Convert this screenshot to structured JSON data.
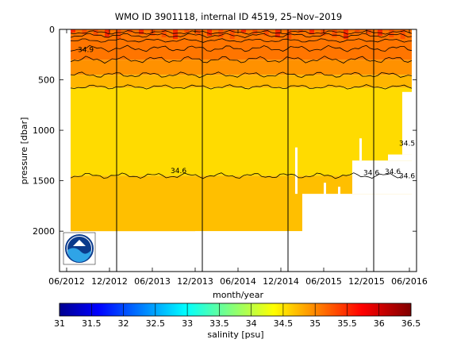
{
  "chart_data": [
    {
      "type": "heatmap",
      "title": "WMO ID 3901118, internal ID 4519, 25–Nov–2019",
      "xlabel": "month/year",
      "ylabel": "pressure [dbar]",
      "x_ticks": [
        "06/2012",
        "12/2012",
        "06/2013",
        "12/2013",
        "06/2014",
        "12/2014",
        "06/2015",
        "12/2015",
        "06/2016"
      ],
      "y_ticks": [
        0,
        500,
        1000,
        1500,
        2000
      ],
      "y_reversed": true,
      "x_range": [
        "2012-05",
        "2016-07"
      ],
      "y_range": [
        0,
        2400
      ],
      "year_boundaries": [
        "01/2013",
        "01/2014",
        "01/2015",
        "01/2016"
      ],
      "salinity_layers": [
        {
          "from_dbar": 0,
          "to_dbar": 300,
          "salinity": 35.1
        },
        {
          "from_dbar": 300,
          "to_dbar": 450,
          "salinity": 34.95
        },
        {
          "from_dbar": 450,
          "to_dbar": 580,
          "salinity": 34.75
        },
        {
          "from_dbar": 580,
          "to_dbar": 1450,
          "salinity": 34.55
        },
        {
          "from_dbar": 1450,
          "to_dbar": 2000,
          "salinity": 34.7
        }
      ],
      "contour_labels": [
        {
          "text": "34.9",
          "x": "2012-07",
          "y": 200
        },
        {
          "text": "34.6",
          "x": "2013-08",
          "y": 1400
        },
        {
          "text": "34.6",
          "x": "2015-11",
          "y": 1420
        },
        {
          "text": "34.6",
          "x": "2016-02",
          "y": 1410
        },
        {
          "text": "34.6",
          "x": "2016-04",
          "y": 1450
        },
        {
          "text": "34.5",
          "x": "2016-04",
          "y": 1130
        }
      ],
      "logo": "noaa-logo",
      "grid": false
    },
    {
      "type": "colorbar",
      "label": "salinity [psu]",
      "range": [
        31,
        36.5
      ],
      "ticks": [
        "31",
        "31.5",
        "32",
        "32.5",
        "33",
        "33.5",
        "34",
        "34.5",
        "35",
        "35.5",
        "36",
        "36.5"
      ],
      "colormap": "jet"
    }
  ]
}
